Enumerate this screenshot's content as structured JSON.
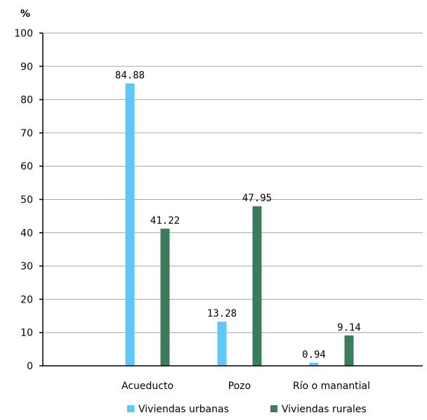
{
  "chart_data": {
    "type": "bar",
    "ylabel": "%",
    "ylim": [
      0,
      100
    ],
    "yticks": [
      "0",
      "10",
      "20",
      "30",
      "40",
      "50",
      "60",
      "70",
      "80",
      "90",
      "100"
    ],
    "grid": true,
    "legend_position": "bottom",
    "categories": [
      "Acueducto",
      "Pozo",
      "Río o manantial"
    ],
    "series": [
      {
        "name": "Viviendas urbanas",
        "color": "#5bc8f5",
        "values": [
          84.88,
          13.28,
          0.94
        ],
        "labels": [
          "84.88",
          "13.28",
          "0.94"
        ]
      },
      {
        "name": "Viviendas rurales",
        "color": "#3a7d5a",
        "values": [
          41.22,
          47.95,
          9.14
        ],
        "labels": [
          "41.22",
          "47.95",
          "9.14"
        ]
      }
    ]
  }
}
